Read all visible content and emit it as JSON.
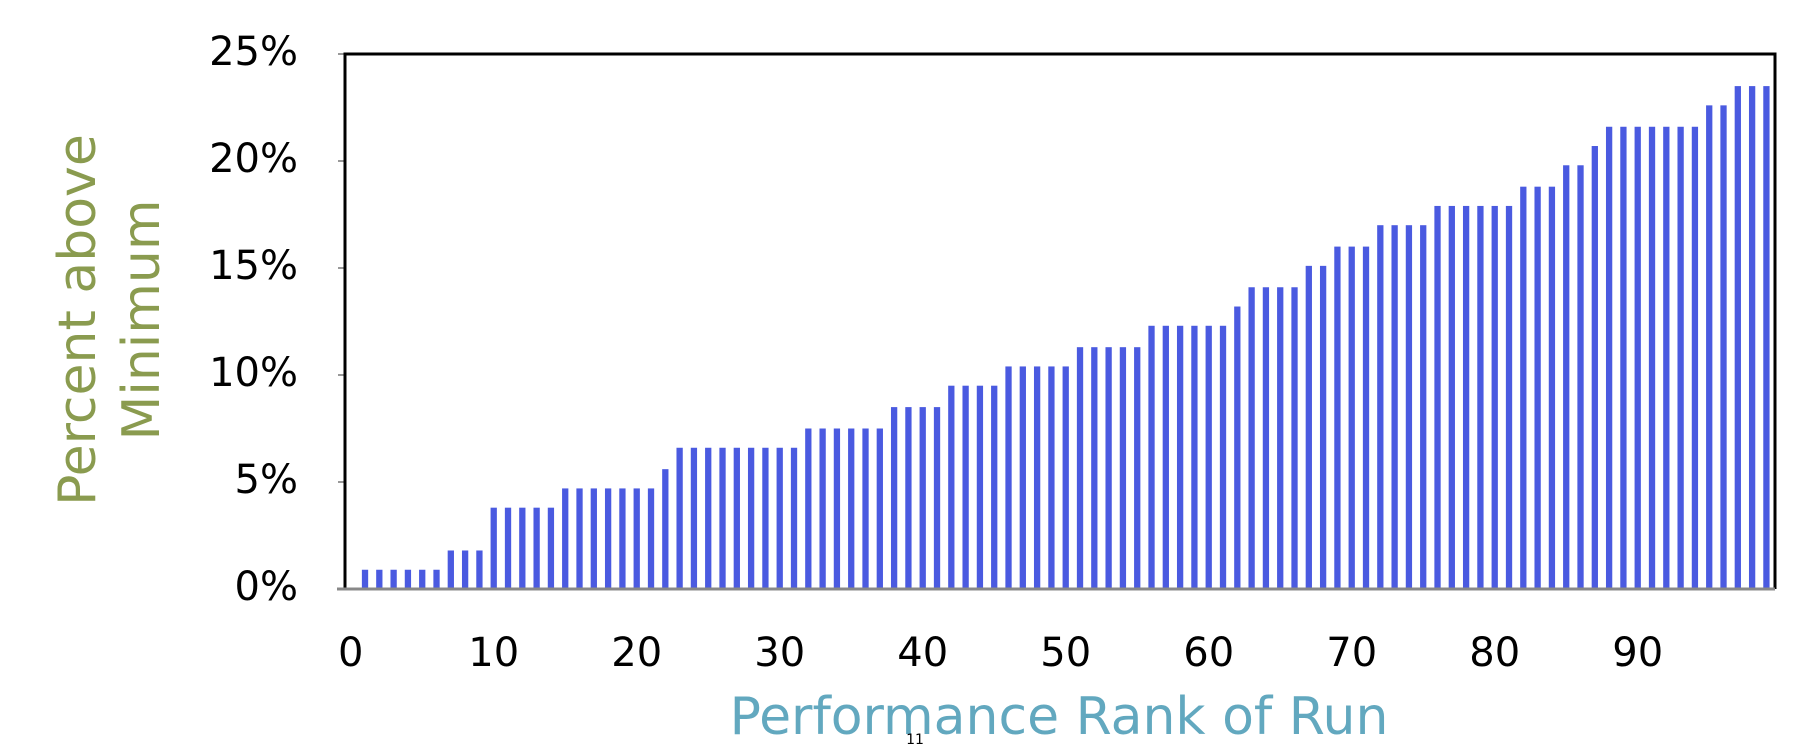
{
  "chart_data": {
    "type": "bar",
    "x_label": "Performance Rank of Run",
    "y_label_lines": [
      "Percent above",
      "Minimum"
    ],
    "page_number": "11",
    "color": "#4a5ae0",
    "x": [
      1,
      2,
      3,
      4,
      5,
      6,
      7,
      8,
      9,
      10,
      11,
      12,
      13,
      14,
      15,
      16,
      17,
      18,
      19,
      20,
      21,
      22,
      23,
      24,
      25,
      26,
      27,
      28,
      29,
      30,
      31,
      32,
      33,
      34,
      35,
      36,
      37,
      38,
      39,
      40,
      41,
      42,
      43,
      44,
      45,
      46,
      47,
      48,
      49,
      50,
      51,
      52,
      53,
      54,
      55,
      56,
      57,
      58,
      59,
      60,
      61,
      62,
      63,
      64,
      65,
      66,
      67,
      68,
      69,
      70,
      71,
      72,
      73,
      74,
      75,
      76,
      77,
      78,
      79,
      80,
      81,
      82,
      83,
      84,
      85,
      86,
      87,
      88,
      89,
      90,
      91,
      92,
      93,
      94,
      95,
      96,
      97,
      98,
      99
    ],
    "values": [
      0.9,
      0.9,
      0.9,
      0.9,
      0.9,
      0.9,
      1.8,
      1.8,
      1.8,
      3.8,
      3.8,
      3.8,
      3.8,
      3.8,
      4.7,
      4.7,
      4.7,
      4.7,
      4.7,
      4.7,
      4.7,
      5.6,
      6.6,
      6.6,
      6.6,
      6.6,
      6.6,
      6.6,
      6.6,
      6.6,
      6.6,
      7.5,
      7.5,
      7.5,
      7.5,
      7.5,
      7.5,
      8.5,
      8.5,
      8.5,
      8.5,
      9.5,
      9.5,
      9.5,
      9.5,
      10.4,
      10.4,
      10.4,
      10.4,
      10.4,
      11.3,
      11.3,
      11.3,
      11.3,
      11.3,
      12.3,
      12.3,
      12.3,
      12.3,
      12.3,
      12.3,
      13.2,
      14.1,
      14.1,
      14.1,
      14.1,
      15.1,
      15.1,
      16,
      16,
      16,
      17,
      17,
      17,
      17,
      17.9,
      17.9,
      17.9,
      17.9,
      17.9,
      17.9,
      18.8,
      18.8,
      18.8,
      19.8,
      19.8,
      20.7,
      21.6,
      21.6,
      21.6,
      21.6,
      21.6,
      21.6,
      21.6,
      22.6,
      22.6,
      23.5,
      23.5,
      23.5
    ],
    "xlim": [
      -0.4,
      99.6
    ],
    "xticks": [
      0,
      10,
      20,
      30,
      40,
      50,
      60,
      70,
      80,
      90
    ],
    "ylim": [
      0,
      25
    ],
    "yticks": [
      {
        "value": 0,
        "label": "0%"
      },
      {
        "value": 5,
        "label": "5%"
      },
      {
        "value": 10,
        "label": "10%"
      },
      {
        "value": 15,
        "label": "15%"
      },
      {
        "value": 20,
        "label": "20%"
      },
      {
        "value": 25,
        "label": "25%"
      }
    ]
  }
}
